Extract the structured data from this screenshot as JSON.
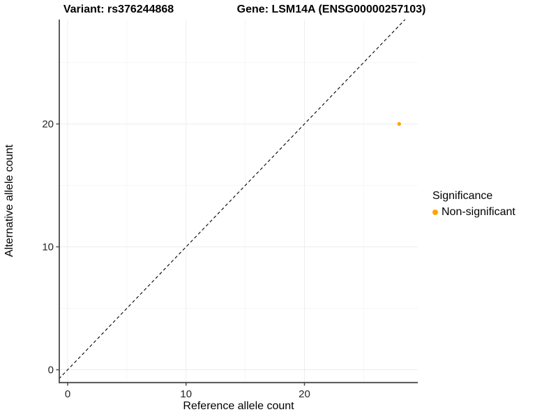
{
  "figure": {
    "titles": {
      "left": "Variant: rs376244868",
      "right": "Gene: LSM14A (ENSG00000257103)"
    },
    "background": "#FFFFFF"
  },
  "chart_data": {
    "type": "scatter",
    "xlabel": "Reference allele count",
    "ylabel": "Alternative allele count",
    "x_ticks": [
      0,
      10,
      20
    ],
    "y_ticks": [
      0,
      10,
      20
    ],
    "x_minor_ticks": [
      5,
      15,
      25
    ],
    "y_minor_ticks": [
      5,
      15,
      25
    ],
    "xlim": [
      -1.5,
      29.6
    ],
    "ylim": [
      -1.1,
      28.5
    ],
    "grid": {
      "major": true,
      "minor": true,
      "background": "#FFFFFF"
    },
    "points": [
      {
        "x": 28,
        "y": 20,
        "series": "Non-significant"
      }
    ],
    "series": [
      {
        "name": "Non-significant",
        "color": "#FFA500"
      }
    ],
    "reference_line": {
      "slope": 1,
      "intercept": 0,
      "style": "dashed",
      "color": "#000000"
    },
    "legend": {
      "title": "Significance",
      "position": "right",
      "items": [
        {
          "label": "Non-significant",
          "color": "#FFA500"
        }
      ]
    }
  },
  "colors": {
    "point": "#FFA500",
    "axis_line": "#4A4A4A",
    "tick_text": "#262626",
    "grid_major": "#EDEDED",
    "grid_minor": "#F6F6F6"
  }
}
